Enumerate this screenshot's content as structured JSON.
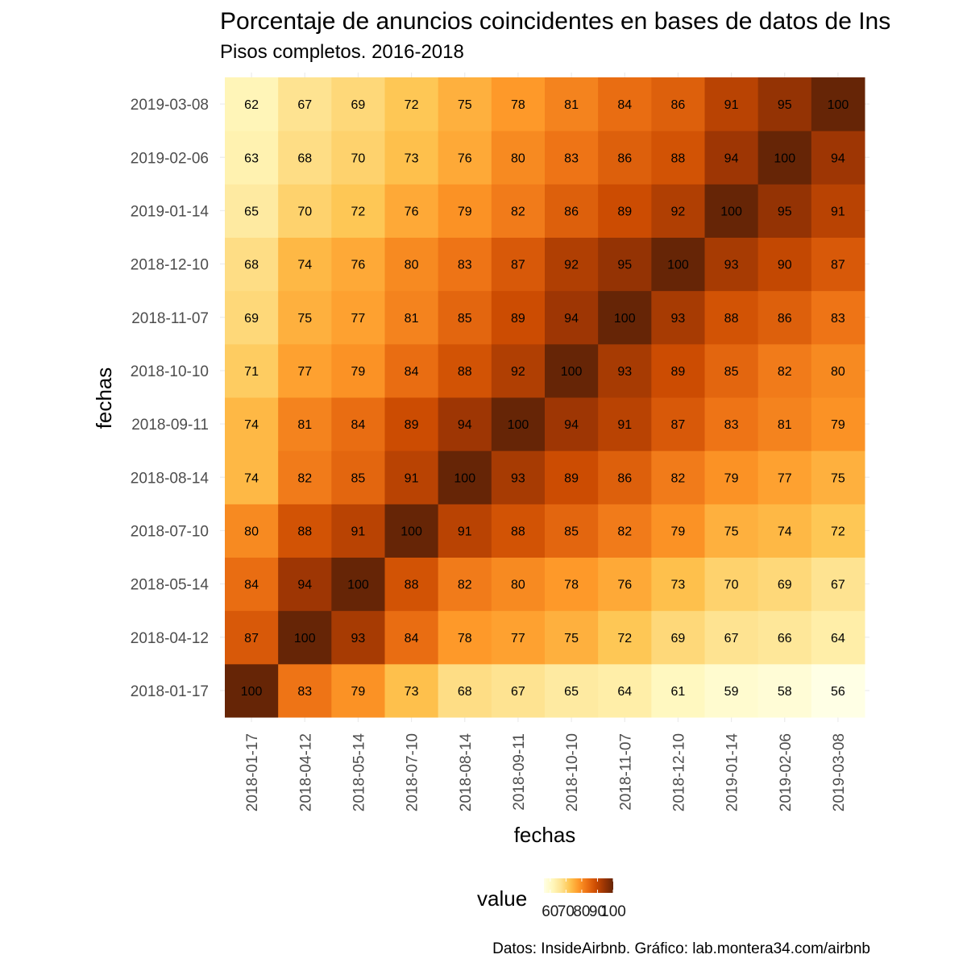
{
  "chart_data": {
    "type": "heatmap",
    "title": "Porcentaje de anuncios coincidentes en bases de datos de Ins",
    "subtitle": "Pisos completos. 2016-2018",
    "xlabel": "fechas",
    "ylabel": "fechas",
    "caption": "Datos: InsideAirbnb. Gráfico: lab.montera34.com/airbnb",
    "x_categories": [
      "2018-01-17",
      "2018-04-12",
      "2018-05-14",
      "2018-07-10",
      "2018-08-14",
      "2018-09-11",
      "2018-10-10",
      "2018-11-07",
      "2018-12-10",
      "2019-01-14",
      "2019-02-06",
      "2019-03-08"
    ],
    "y_categories": [
      "2018-01-17",
      "2018-04-12",
      "2018-05-14",
      "2018-07-10",
      "2018-08-14",
      "2018-09-11",
      "2018-10-10",
      "2018-11-07",
      "2018-12-10",
      "2019-01-14",
      "2019-02-06",
      "2019-03-08"
    ],
    "values": [
      [
        100,
        83,
        79,
        73,
        68,
        67,
        65,
        64,
        61,
        59,
        58,
        56
      ],
      [
        87,
        100,
        93,
        84,
        78,
        77,
        75,
        72,
        69,
        67,
        66,
        64
      ],
      [
        84,
        94,
        100,
        88,
        82,
        80,
        78,
        76,
        73,
        70,
        69,
        67
      ],
      [
        80,
        88,
        91,
        100,
        91,
        88,
        85,
        82,
        79,
        75,
        74,
        72
      ],
      [
        74,
        82,
        85,
        91,
        100,
        93,
        89,
        86,
        82,
        79,
        77,
        75
      ],
      [
        74,
        81,
        84,
        89,
        94,
        100,
        94,
        91,
        87,
        83,
        81,
        79
      ],
      [
        71,
        77,
        79,
        84,
        88,
        92,
        100,
        93,
        89,
        85,
        82,
        80
      ],
      [
        69,
        75,
        77,
        81,
        85,
        89,
        94,
        100,
        93,
        88,
        86,
        83
      ],
      [
        68,
        74,
        76,
        80,
        83,
        87,
        92,
        95,
        100,
        93,
        90,
        87
      ],
      [
        65,
        70,
        72,
        76,
        79,
        82,
        86,
        89,
        92,
        100,
        95,
        91
      ],
      [
        63,
        68,
        70,
        73,
        76,
        80,
        83,
        86,
        88,
        94,
        100,
        94
      ],
      [
        62,
        67,
        69,
        72,
        75,
        78,
        81,
        84,
        86,
        91,
        95,
        100
      ]
    ],
    "value_range": [
      56,
      100
    ],
    "legend": {
      "title": "value",
      "position": "bottom",
      "ticks": [
        60,
        70,
        80,
        90,
        100
      ]
    },
    "palette": [
      "#ffffe5",
      "#fff7bc",
      "#fee391",
      "#fec44f",
      "#fe9929",
      "#ec7014",
      "#cc4c02",
      "#993404",
      "#662506"
    ],
    "grid": true
  }
}
